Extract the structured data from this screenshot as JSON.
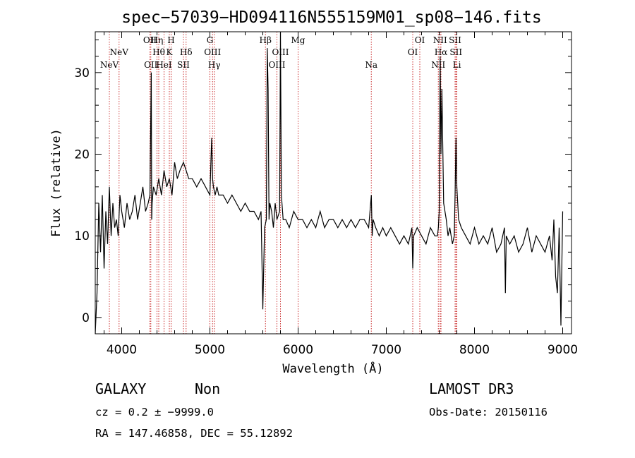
{
  "chart_data": {
    "type": "line",
    "title": "spec−57039−HD094116N555159M01_sp08−146.fits",
    "xlabel": "Wavelength (Å)",
    "ylabel": "Flux (relative)",
    "xlim": [
      3700,
      9100
    ],
    "ylim": [
      -2,
      35
    ],
    "xticks": [
      4000,
      5000,
      6000,
      7000,
      8000,
      9000
    ],
    "yticks": [
      0,
      10,
      20,
      30
    ],
    "series": [
      {
        "name": "spectrum",
        "x": [
          3700,
          3720,
          3740,
          3760,
          3780,
          3800,
          3820,
          3840,
          3860,
          3880,
          3900,
          3920,
          3940,
          3960,
          3980,
          4000,
          4030,
          4060,
          4090,
          4120,
          4150,
          4180,
          4210,
          4240,
          4270,
          4300,
          4320,
          4335,
          4340,
          4345,
          4360,
          4390,
          4420,
          4450,
          4480,
          4510,
          4540,
          4570,
          4600,
          4630,
          4660,
          4700,
          4730,
          4760,
          4800,
          4850,
          4900,
          4950,
          5000,
          5020,
          5030,
          5040,
          5060,
          5080,
          5100,
          5150,
          5200,
          5250,
          5300,
          5350,
          5400,
          5450,
          5500,
          5550,
          5580,
          5600,
          5620,
          5640,
          5650,
          5660,
          5670,
          5680,
          5700,
          5720,
          5740,
          5760,
          5790,
          5800,
          5810,
          5830,
          5860,
          5900,
          5950,
          6000,
          6050,
          6100,
          6150,
          6200,
          6250,
          6300,
          6350,
          6400,
          6450,
          6500,
          6550,
          6600,
          6650,
          6700,
          6750,
          6800,
          6830,
          6840,
          6850,
          6880,
          6920,
          6960,
          7000,
          7050,
          7100,
          7150,
          7200,
          7250,
          7290,
          7300,
          7310,
          7350,
          7400,
          7450,
          7500,
          7550,
          7580,
          7590,
          7600,
          7610,
          7620,
          7630,
          7650,
          7680,
          7700,
          7720,
          7750,
          7770,
          7780,
          7790,
          7800,
          7820,
          7850,
          7900,
          7950,
          8000,
          8050,
          8100,
          8150,
          8200,
          8250,
          8300,
          8340,
          8350,
          8360,
          8400,
          8450,
          8500,
          8550,
          8600,
          8650,
          8700,
          8750,
          8800,
          8850,
          8880,
          8900,
          8920,
          8940,
          8960,
          8980,
          9000
        ],
        "values": [
          -2,
          3,
          14,
          8,
          15,
          6,
          13,
          9,
          16,
          10,
          14,
          11,
          12,
          10,
          15,
          13,
          11,
          14,
          12,
          13,
          15,
          12,
          14,
          16,
          13,
          14,
          15,
          30,
          12,
          14,
          16,
          15,
          17,
          15,
          18,
          16,
          17,
          15,
          19,
          17,
          18,
          19,
          18,
          17,
          17,
          16,
          17,
          16,
          15,
          22,
          17,
          16,
          15,
          16,
          15,
          15,
          14,
          15,
          14,
          13,
          14,
          13,
          13,
          12,
          13,
          1,
          11,
          12,
          33,
          28,
          12,
          14,
          13,
          11,
          14,
          12,
          13,
          35,
          15,
          12,
          12,
          11,
          13,
          12,
          12,
          11,
          12,
          11,
          13,
          11,
          12,
          12,
          11,
          12,
          11,
          12,
          11,
          12,
          12,
          11,
          15,
          10,
          12,
          11,
          10,
          11,
          10,
          11,
          10,
          9,
          10,
          9,
          11,
          6,
          10,
          11,
          10,
          9,
          11,
          10,
          10,
          11,
          13,
          32,
          20,
          28,
          14,
          12,
          10,
          11,
          9,
          10,
          15,
          22,
          16,
          12,
          11,
          10,
          9,
          11,
          9,
          10,
          9,
          11,
          8,
          9,
          11,
          3,
          10,
          9,
          10,
          8,
          9,
          11,
          8,
          10,
          9,
          8,
          10,
          7,
          12,
          5,
          3,
          11,
          -1,
          13
        ]
      }
    ],
    "spectral_lines": [
      {
        "label": "NeV",
        "wavelength": 3860,
        "row": 2
      },
      {
        "label": "NeV",
        "wavelength": 3970,
        "row": 1
      },
      {
        "label": "OII",
        "wavelength": 4320,
        "row": 0
      },
      {
        "label": "OII",
        "wavelength": 4330,
        "row": 2
      },
      {
        "label": "Hη",
        "wavelength": 4400,
        "row": 0
      },
      {
        "label": "Hθ",
        "wavelength": 4420,
        "row": 1
      },
      {
        "label": "HeI",
        "wavelength": 4480,
        "row": 2
      },
      {
        "label": "H",
        "wavelength": 4560,
        "row": 0
      },
      {
        "label": "K",
        "wavelength": 4540,
        "row": 1
      },
      {
        "label": "SII",
        "wavelength": 4700,
        "row": 2
      },
      {
        "label": "Hδ",
        "wavelength": 4730,
        "row": 1
      },
      {
        "label": "G",
        "wavelength": 5000,
        "row": 0
      },
      {
        "label": "OIII",
        "wavelength": 5030,
        "row": 1
      },
      {
        "label": "Hγ",
        "wavelength": 5050,
        "row": 2
      },
      {
        "label": "Hβ",
        "wavelength": 5630,
        "row": 0
      },
      {
        "label": "OIII",
        "wavelength": 5760,
        "row": 2
      },
      {
        "label": "OIII",
        "wavelength": 5800,
        "row": 1
      },
      {
        "label": "Mg",
        "wavelength": 6000,
        "row": 0
      },
      {
        "label": "Na",
        "wavelength": 6830,
        "row": 2
      },
      {
        "label": "OI",
        "wavelength": 7300,
        "row": 1
      },
      {
        "label": "OI",
        "wavelength": 7380,
        "row": 0
      },
      {
        "label": "NII",
        "wavelength": 7590,
        "row": 2
      },
      {
        "label": "NII",
        "wavelength": 7610,
        "row": 0
      },
      {
        "label": "Hα",
        "wavelength": 7620,
        "row": 1
      },
      {
        "label": "SII",
        "wavelength": 7780,
        "row": 0
      },
      {
        "label": "SII",
        "wavelength": 7790,
        "row": 1
      },
      {
        "label": "Li",
        "wavelength": 7800,
        "row": 2
      }
    ],
    "line_color": "#cc3333"
  },
  "footer": {
    "object_class": "GALAXY",
    "subclass": "Non",
    "survey": "LAMOST DR3",
    "redshift_line": "cz = 0.2 ± −9999.0",
    "obs_date": "Obs-Date: 20150116",
    "coords_line": "RA = 147.46858, DEC =  55.12892"
  }
}
